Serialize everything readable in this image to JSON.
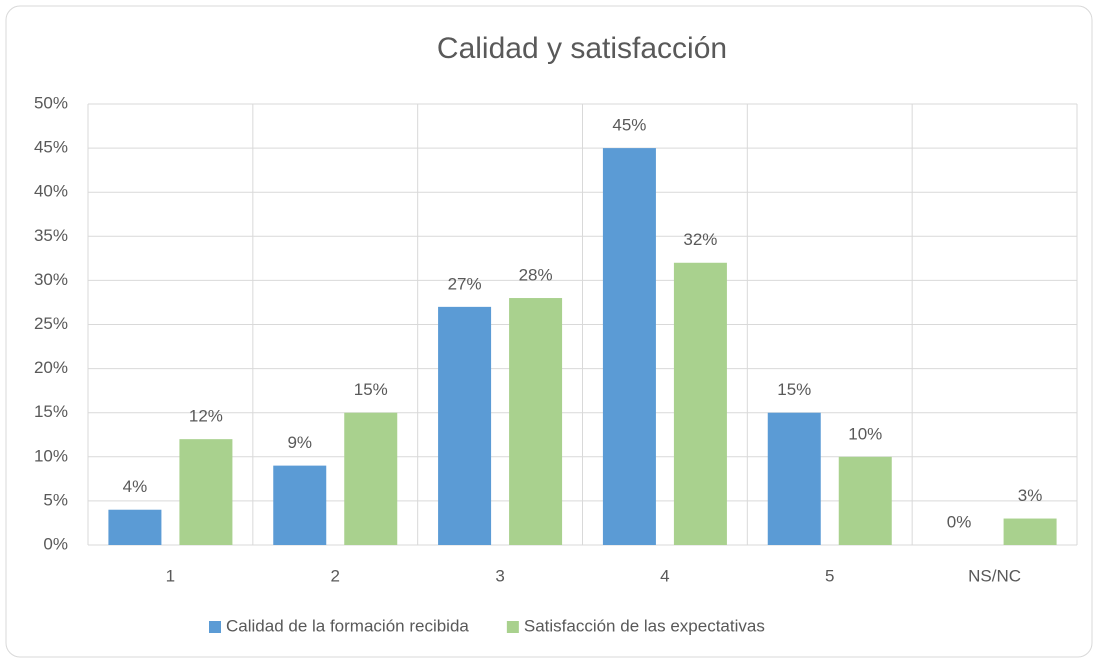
{
  "chart_data": {
    "type": "bar",
    "title": "Calidad y satisfacción",
    "categories": [
      "1",
      "2",
      "3",
      "4",
      "5",
      "NS/NC"
    ],
    "series": [
      {
        "name": "Calidad de la formación recibida",
        "color": "#5b9bd5",
        "values": [
          4,
          9,
          27,
          45,
          15,
          0
        ],
        "value_labels": [
          "4%",
          "9%",
          "27%",
          "45%",
          "15%",
          "0%"
        ]
      },
      {
        "name": "Satisfacción de las expectativas",
        "color": "#a9d18e",
        "values": [
          12,
          15,
          28,
          32,
          10,
          3
        ],
        "value_labels": [
          "12%",
          "15%",
          "28%",
          "32%",
          "10%",
          "3%"
        ]
      }
    ],
    "ylim": [
      0,
      50
    ],
    "yticks": [
      {
        "value": 0,
        "label": "0%"
      },
      {
        "value": 5,
        "label": "5%"
      },
      {
        "value": 10,
        "label": "10%"
      },
      {
        "value": 15,
        "label": "15%"
      },
      {
        "value": 20,
        "label": "20%"
      },
      {
        "value": 25,
        "label": "25%"
      },
      {
        "value": 30,
        "label": "30%"
      },
      {
        "value": 35,
        "label": "35%"
      },
      {
        "value": 40,
        "label": "40%"
      },
      {
        "value": 45,
        "label": "45%"
      },
      {
        "value": 50,
        "label": "50%"
      }
    ],
    "grid": true,
    "legend": "bottom"
  }
}
